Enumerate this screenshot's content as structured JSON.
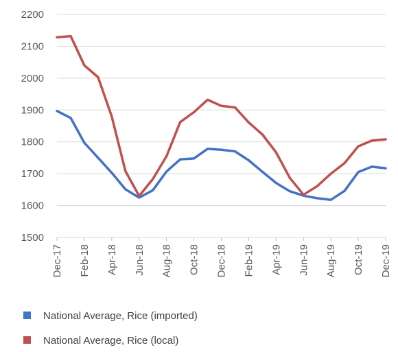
{
  "chart_data": {
    "type": "line",
    "ylim": [
      1500,
      2200
    ],
    "y_ticks": [
      1500,
      1600,
      1700,
      1800,
      1900,
      2000,
      2100,
      2200
    ],
    "x_tick_labels": [
      "Dec-17",
      "Feb-18",
      "Apr-18",
      "Jun-18",
      "Aug-18",
      "Oct-18",
      "Dec-18",
      "Feb-19",
      "Apr-19",
      "Jun-19",
      "Aug-19",
      "Oct-19",
      "Dec-19"
    ],
    "x": [
      "Dec-17",
      "Jan-18",
      "Feb-18",
      "Mar-18",
      "Apr-18",
      "May-18",
      "Jun-18",
      "Jul-18",
      "Aug-18",
      "Sep-18",
      "Oct-18",
      "Nov-18",
      "Dec-18",
      "Jan-19",
      "Feb-19",
      "Mar-19",
      "Apr-19",
      "May-19",
      "Jun-19",
      "Jul-19",
      "Aug-19",
      "Sep-19",
      "Oct-19",
      "Nov-19",
      "Dec-19"
    ],
    "grid": true,
    "legend": "bottom",
    "series": [
      {
        "name": "National Average, Rice (imported)",
        "color": "#4472C4",
        "values": [
          1897,
          1875,
          1797,
          1750,
          1703,
          1651,
          1625,
          1648,
          1707,
          1745,
          1748,
          1778,
          1775,
          1770,
          1742,
          1706,
          1671,
          1645,
          1631,
          1623,
          1618,
          1646,
          1705,
          1722,
          1717
        ]
      },
      {
        "name": "National Average, Rice (local)",
        "color": "#C0504D",
        "values": [
          2128,
          2132,
          2040,
          2003,
          1880,
          1708,
          1630,
          1683,
          1755,
          1862,
          1893,
          1932,
          1913,
          1908,
          1861,
          1823,
          1767,
          1687,
          1634,
          1661,
          1700,
          1733,
          1786,
          1804,
          1808
        ]
      }
    ]
  }
}
